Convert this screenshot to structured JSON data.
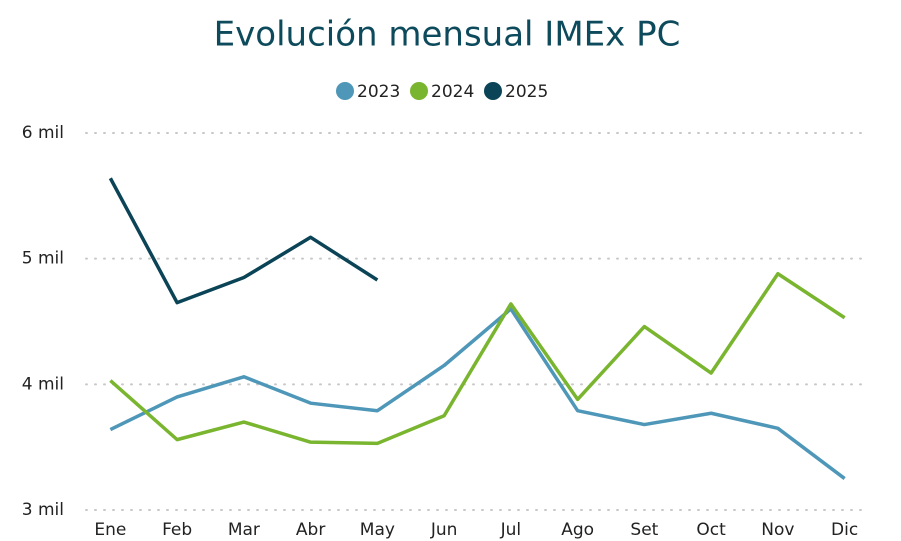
{
  "chart_data": {
    "type": "line",
    "title": "Evolución mensual IMEx PC",
    "categories": [
      "Ene",
      "Feb",
      "Mar",
      "Abr",
      "May",
      "Jun",
      "Jul",
      "Ago",
      "Set",
      "Oct",
      "Nov",
      "Dic"
    ],
    "series": [
      {
        "name": "2023",
        "color": "#4e97b8",
        "values": [
          3640,
          3900,
          4060,
          3850,
          3790,
          4150,
          4600,
          3790,
          3680,
          3770,
          3650,
          3250
        ]
      },
      {
        "name": "2024",
        "color": "#7ab52f",
        "values": [
          4030,
          3560,
          3700,
          3540,
          3530,
          3750,
          4640,
          3880,
          4460,
          4090,
          4880,
          4530
        ]
      },
      {
        "name": "2025",
        "color": "#0b4457",
        "values": [
          5640,
          4650,
          4850,
          5170,
          4830,
          null,
          null,
          null,
          null,
          null,
          null,
          null
        ]
      }
    ],
    "ylim": [
      3000,
      6000
    ],
    "yticks": [
      {
        "value": 3000,
        "label": "3 mil"
      },
      {
        "value": 4000,
        "label": "4 mil"
      },
      {
        "value": 5000,
        "label": "5 mil"
      },
      {
        "value": 6000,
        "label": "6 mil"
      }
    ],
    "grid": true,
    "legend": "top"
  }
}
